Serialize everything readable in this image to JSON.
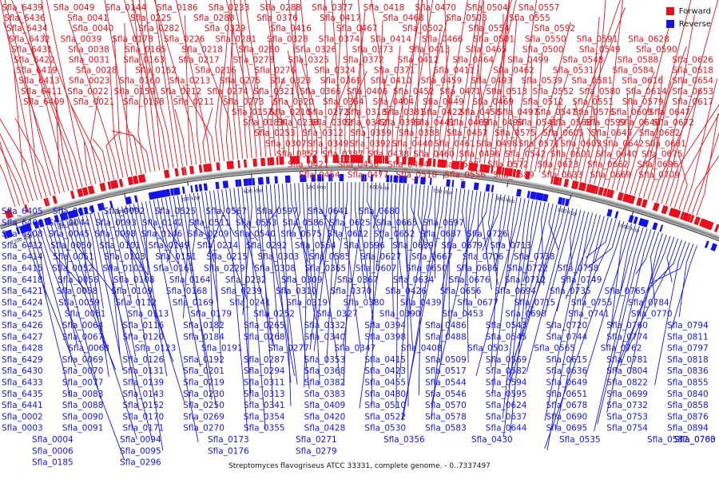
{
  "legend": {
    "forward_label": "Forward",
    "reverse_label": "Reverse",
    "forward_color": "#e8101c",
    "reverse_color": "#1414e6"
  },
  "caption": "Streptomyces flavogriseus ATCC 33331, complete genome. - 0..7337497",
  "colors": {
    "forward": "#e8101c",
    "reverse": "#1414e6",
    "backbone": "#8a8a8a",
    "tick": "#222222"
  },
  "scale_labels": [
    "100 kbp",
    "200 kbp",
    "300 kbp",
    "400 kbp",
    "500 kbp",
    "600 kbp",
    "700 kbp",
    "800 kbp",
    "900 kbp",
    "1000 kbp",
    "7300 kbp"
  ],
  "forward_rows": [
    [
      "Sfla_6439",
      "Sfla_0049",
      "Sfla_0144",
      "Sfla_0186",
      "Sfla_0233",
      "Sfla_0288",
      "Sfla_0377",
      "Sfla_0418",
      "Sfla_0470",
      "Sfla_0504",
      "Sfla_0557"
    ],
    [
      "Sfla_6436",
      "Sfla_0041",
      "Sfla_0225",
      "Sfla_0283",
      "Sfla_0376",
      "Sfla_0417",
      "Sfla_0468",
      "Sfla_0503",
      "Sfla_0555"
    ],
    [
      "Sfla_6434",
      "Sfla_0040",
      "Sfla_0282",
      "Sfla_0329",
      "Sfla_0416",
      "Sfla_0467",
      "Sfla_0502",
      "Sfla_0554",
      "Sfla_0592"
    ],
    [
      "Sfla_6432",
      "Sfla_0039",
      "Sfla_0178",
      "Sfla_0226",
      "Sfla_0281",
      "Sfla_0328",
      "Sfla_0374",
      "Sfla_0414",
      "Sfla_0466",
      "Sfla_0501",
      "Sfla_0550",
      "Sfla_0591",
      "Sfla_0628"
    ],
    [
      "Sfla_6431",
      "Sfla_0038",
      "Sfla_0165",
      "Sfla_0218",
      "Sfla_0280",
      "Sfla_0326",
      "Sfla_0373",
      "Sfla_0413",
      "Sfla_0465",
      "Sfla_0500",
      "Sfla_0549",
      "Sfla_0590"
    ],
    [
      "Sfla_6422",
      "Sfla_0031",
      "Sfla_0163",
      "Sfla_0217",
      "Sfla_0278",
      "Sfla_0325",
      "Sfla_0372",
      "Sfla_0412",
      "Sfla_0464",
      "Sfla_0499",
      "Sfla_0548",
      "Sfla_0588",
      "Sfla_0626"
    ],
    [
      "Sfla_6419",
      "Sfla_0028",
      "Sfla_0162",
      "Sfla_0216",
      "Sfla_0276",
      "Sfla_0324",
      "Sfla_0371",
      "Sfla_0411",
      "Sfla_0462",
      "Sfla_0531",
      "Sfla_0584",
      "Sfla_0618"
    ],
    [
      "Sfla_6413",
      "Sfla_0023",
      "Sfla_0160",
      "Sfla_0213",
      "Sfla_0275",
      "Sfla_0323",
      "Sfla_0369",
      "Sfla_0410",
      "Sfla_0459",
      "Sfla_0493",
      "Sfla_0539",
      "Sfla_0581",
      "Sfla_0616",
      "Sfla_0654"
    ],
    [
      "Sfla_6411",
      "Sfla_0022",
      "Sfla_0159",
      "Sfla_0212",
      "Sfla_0274",
      "Sfla_0321",
      "Sfla_0366",
      "Sfla_0406",
      "Sfla_0452",
      "Sfla_0471",
      "Sfla_0513",
      "Sfla_0552",
      "Sfla_0580",
      "Sfla_0614",
      "Sfla_0653"
    ],
    [
      "Sfla_6409",
      "Sfla_0021",
      "Sfla_0158",
      "Sfla_0211",
      "Sfla_0273",
      "Sfla_0320",
      "Sfla_0364",
      "Sfla_0404",
      "Sfla_0449",
      "Sfla_0469",
      "Sfla_0512",
      "Sfla_0551",
      "Sfla_0579",
      "Sfla_0617"
    ],
    [
      "Sfla_0157",
      "Sfla_0210",
      "Sfla_0272",
      "Sfla_0318",
      "Sfla_0381",
      "Sfla_0422",
      "Sfla_0458",
      "Sfla_0497",
      "Sfla_0547",
      "Sfla_0576",
      "Sfla_0609",
      "Sfla_0647"
    ],
    [
      "Sfla_0183",
      "Sfla_0238",
      "Sfla_0302",
      "Sfla_0342",
      "Sfla_0395",
      "Sfla_0441",
      "Sfla_0463",
      "Sfla_0495",
      "Sfla_0541",
      "Sfla_0568",
      "Sfla_0599",
      "Sfla_0646",
      "Sfla_0672"
    ],
    [
      "Sfla_0253",
      "Sfla_0312",
      "Sfla_0359",
      "Sfla_0388",
      "Sfla_0457",
      "Sfla_0575",
      "Sfla_0605",
      "Sfla_0645",
      "Sfla_0682"
    ],
    [
      "Sfla_0307",
      "Sfla_0349",
      "Sfla_0392",
      "Sfla_0440",
      "Sfla_0461",
      "Sfla_0498",
      "Sfla_0571",
      "Sfla_0603",
      "Sfla_0642",
      "Sfla_0681"
    ],
    [
      "Sfla_0352",
      "Sfla_0387",
      "Sfla_0438",
      "Sfla_0460",
      "Sfla_0496",
      "Sfla_0542",
      "Sfla_0601",
      "Sfla_0640",
      "Sfla_0675"
    ],
    [
      "Sfla_0421",
      "Sfla_0456",
      "Sfla_0494",
      "Sfla_0538",
      "Sfla_0572",
      "Sfla_0623",
      "Sfla_0662",
      "Sfla_0696"
    ],
    [
      "Sfla_0454",
      "Sfla_0477",
      "Sfla_0518",
      "Sfla_0556",
      "Sfla_0589",
      "Sfla_0633",
      "Sfla_0669",
      "Sfla_0709"
    ]
  ],
  "reverse_rows": [
    [
      "Sfla_6405",
      "Sfla_0035",
      "Sfla_0092",
      "Sfla_0525",
      "Sfla_0567",
      "Sfla_0597",
      "Sfla_0641",
      "Sfla_0680"
    ],
    [
      "Sfla_6406",
      "Sfla_0044",
      "Sfla_0093",
      "Sfla_0142",
      "Sfla_0511",
      "Sfla_0553",
      "Sfla_0586",
      "Sfla_0625",
      "Sfla_0665",
      "Sfla_0697"
    ],
    [
      "Sfla_6408",
      "Sfla_0045",
      "Sfla_0098",
      "Sfla_0146",
      "Sfla_0209",
      "Sfla_0540",
      "Sfla_0575",
      "Sfla_0612",
      "Sfla_0652",
      "Sfla_0687",
      "Sfla_0726"
    ],
    [
      "Sfla_6412",
      "Sfla_0050",
      "Sfla_0101",
      "Sfla_0149",
      "Sfla_0214",
      "Sfla_0292",
      "Sfla_0564",
      "Sfla_0596",
      "Sfla_0639",
      "Sfla_0679",
      "Sfla_0713"
    ],
    [
      "Sfla_6414",
      "Sfla_0051",
      "Sfla_0103",
      "Sfla_0151",
      "Sfla_0215",
      "Sfla_0303",
      "Sfla_0585",
      "Sfla_0627",
      "Sfla_0667",
      "Sfla_0706",
      "Sfla_0738"
    ],
    [
      "Sfla_6415",
      "Sfla_0052",
      "Sfla_0105",
      "Sfla_0161",
      "Sfla_0229",
      "Sfla_0308",
      "Sfla_0365",
      "Sfla_0607",
      "Sfla_0650",
      "Sfla_0686",
      "Sfla_0722",
      "Sfla_0758"
    ],
    [
      "Sfla_6418",
      "Sfla_0056",
      "Sfla_0108",
      "Sfla_0164",
      "Sfla_0232",
      "Sfla_0309",
      "Sfla_0367",
      "Sfla_0634",
      "Sfla_0676",
      "Sfla_0712",
      "Sfla_0749"
    ],
    [
      "Sfla_6421",
      "Sfla_0058",
      "Sfla_0109",
      "Sfla_0168",
      "Sfla_0239",
      "Sfla_0310",
      "Sfla_0370",
      "Sfla_0426",
      "Sfla_0656",
      "Sfla_0694",
      "Sfla_0735",
      "Sfla_0765"
    ],
    [
      "Sfla_6424",
      "Sfla_0059",
      "Sfla_0112",
      "Sfla_0169",
      "Sfla_0241",
      "Sfla_0319",
      "Sfla_0380",
      "Sfla_0439",
      "Sfla_0677",
      "Sfla_0715",
      "Sfla_0755",
      "Sfla_0784"
    ],
    [
      "Sfla_6425",
      "Sfla_0061",
      "Sfla_0113",
      "Sfla_0179",
      "Sfla_0252",
      "Sfla_0327",
      "Sfla_0390",
      "Sfla_0453",
      "Sfla_0698",
      "Sfla_0741",
      "Sfla_0770"
    ],
    [
      "Sfla_6426",
      "Sfla_0064",
      "Sfla_0116",
      "Sfla_0182",
      "Sfla_0265",
      "Sfla_0332",
      "Sfla_0394",
      "Sfla_0486",
      "Sfla_0543",
      "Sfla_0720",
      "Sfla_0760",
      "Sfla_0794"
    ],
    [
      "Sfla_6427",
      "Sfla_0067",
      "Sfla_0120",
      "Sfla_0184",
      "Sfla_0268",
      "Sfla_0340",
      "Sfla_0398",
      "Sfla_0488",
      "Sfla_0545",
      "Sfla_0744",
      "Sfla_0774",
      "Sfla_0811"
    ],
    [
      "Sfla_6428",
      "Sfla_0068",
      "Sfla_0123",
      "Sfla_0191",
      "Sfla_0277",
      "Sfla_0347",
      "Sfla_0408",
      "Sfla_0503",
      "Sfla_0565",
      "Sfla_0762",
      "Sfla_0797"
    ],
    [
      "Sfla_6429",
      "Sfla_0069",
      "Sfla_0126",
      "Sfla_0192",
      "Sfla_0287",
      "Sfla_0353",
      "Sfla_0415",
      "Sfla_0509",
      "Sfla_0569",
      "Sfla_0615",
      "Sfla_0781",
      "Sfla_0818"
    ],
    [
      "Sfla_6430",
      "Sfla_0070",
      "Sfla_0131",
      "Sfla_0201",
      "Sfla_0294",
      "Sfla_0368",
      "Sfla_0423",
      "Sfla_0517",
      "Sfla_0582",
      "Sfla_0636",
      "Sfla_0804",
      "Sfla_0836"
    ],
    [
      "Sfla_6433",
      "Sfla_0077",
      "Sfla_0139",
      "Sfla_0219",
      "Sfla_0311",
      "Sfla_0382",
      "Sfla_0455",
      "Sfla_0544",
      "Sfla_0594",
      "Sfla_0649",
      "Sfla_0822",
      "Sfla_0855"
    ],
    [
      "Sfla_6435",
      "Sfla_0083",
      "Sfla_0143",
      "Sfla_0230",
      "Sfla_0313",
      "Sfla_0383",
      "Sfla_0480",
      "Sfla_0546",
      "Sfla_0595",
      "Sfla_0651",
      "Sfla_0699",
      "Sfla_0840"
    ],
    [
      "Sfla_6441",
      "Sfla_0088",
      "Sfla_0152",
      "Sfla_0250",
      "Sfla_0341",
      "Sfla_0409",
      "Sfla_0510",
      "Sfla_0570",
      "Sfla_0624",
      "Sfla_0678",
      "Sfla_0732",
      "Sfla_0858"
    ],
    [
      "Sfla_0002",
      "Sfla_0090",
      "Sfla_0170",
      "Sfla_0269",
      "Sfla_0354",
      "Sfla_0420",
      "Sfla_0522",
      "Sfla_0578",
      "Sfla_0637",
      "Sfla_0690",
      "Sfla_0753",
      "Sfla_0876"
    ],
    [
      "Sfla_0003",
      "Sfla_0091",
      "Sfla_0171",
      "Sfla_0270",
      "Sfla_0355",
      "Sfla_0428",
      "Sfla_0530",
      "Sfla_0583",
      "Sfla_0644",
      "Sfla_0695",
      "Sfla_0754",
      "Sfla_0894"
    ],
    [
      "Sfla_0004",
      "Sfla_0094",
      "Sfla_0173",
      "Sfla_0271",
      "Sfla_0356",
      "Sfla_0430",
      "Sfla_0535",
      "Sfla_0587",
      "Sfla_0700",
      "Sfla_0763"
    ],
    [
      "Sfla_0006",
      "Sfla_0095",
      "Sfla_0176",
      "Sfla_0279"
    ],
    [
      "Sfla_0185",
      "Sfla_0296"
    ]
  ]
}
